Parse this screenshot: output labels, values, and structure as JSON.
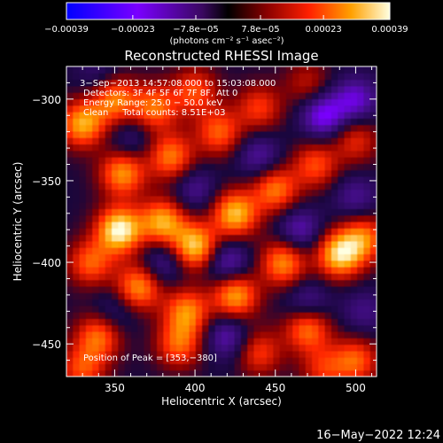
{
  "chart_data": {
    "type": "heatmap",
    "title": "Reconstructed RHESSI Image",
    "xlabel": "Heliocentric X (arcsec)",
    "ylabel": "Heliocentric Y (arcsec)",
    "xlim": [
      320,
      513
    ],
    "ylim": [
      -470,
      -280
    ],
    "x_ticks": [
      350,
      400,
      450,
      500
    ],
    "x_tick_labels": [
      "350",
      "400",
      "450",
      "500"
    ],
    "y_ticks": [
      -300,
      -350,
      -400,
      -450
    ],
    "y_tick_labels": [
      "−300",
      "−350",
      "−400",
      "−450"
    ],
    "colorbar": {
      "range": [
        -0.00039,
        0.00039
      ],
      "tick_labels": [
        "−0.00039",
        "−0.00023",
        "−7.8e−05",
        "7.8e−05",
        "0.00023",
        "0.00039"
      ],
      "unit_label": "(photons cm⁻² s⁻¹ asec⁻²)",
      "colors": [
        "#0000ff",
        "#7a00ff",
        "#5a1080",
        "#000000",
        "#8a0000",
        "#ff2000",
        "#ffa000",
        "#ffffe0"
      ]
    },
    "annotations": [
      "3−Sep−2013 14:57:08.000 to 15:03:08.000",
      "Detectors: 3F 4F 5F 6F 7F 8F, Att 0",
      "Energy Range: 25.0 − 50.0 keV",
      "Clean     Total counts: 8.51E+03"
    ],
    "peak": {
      "label": "Position of Peak = [353,−380]",
      "x": 353,
      "y": -380
    },
    "bands": [
      {
        "x": 330,
        "y": -315,
        "value": 0.0003
      },
      {
        "x": 350,
        "y": -300,
        "value": 0.00026
      },
      {
        "x": 375,
        "y": -305,
        "value": 0.00024
      },
      {
        "x": 400,
        "y": -295,
        "value": 0.0002
      },
      {
        "x": 355,
        "y": -345,
        "value": 0.00028
      },
      {
        "x": 385,
        "y": -335,
        "value": 0.00025
      },
      {
        "x": 415,
        "y": -320,
        "value": 0.00022
      },
      {
        "x": 440,
        "y": -305,
        "value": 0.00018
      },
      {
        "x": 470,
        "y": -290,
        "value": 0.00012
      },
      {
        "x": 353,
        "y": -380,
        "value": 0.00039
      },
      {
        "x": 380,
        "y": -375,
        "value": 0.0003
      },
      {
        "x": 400,
        "y": -390,
        "value": 0.00034
      },
      {
        "x": 425,
        "y": -370,
        "value": 0.00032
      },
      {
        "x": 450,
        "y": -355,
        "value": 0.00025
      },
      {
        "x": 475,
        "y": -340,
        "value": 0.0002
      },
      {
        "x": 500,
        "y": -325,
        "value": 0.00016
      },
      {
        "x": 335,
        "y": -400,
        "value": 0.00022
      },
      {
        "x": 365,
        "y": -415,
        "value": 0.00028
      },
      {
        "x": 395,
        "y": -430,
        "value": 0.00026
      },
      {
        "x": 425,
        "y": -420,
        "value": 0.0003
      },
      {
        "x": 455,
        "y": -400,
        "value": 0.00027
      },
      {
        "x": 490,
        "y": -395,
        "value": 0.00034
      },
      {
        "x": 505,
        "y": -385,
        "value": 0.00024
      },
      {
        "x": 340,
        "y": -445,
        "value": 0.00024
      },
      {
        "x": 330,
        "y": -465,
        "value": 0.0002
      },
      {
        "x": 390,
        "y": -450,
        "value": 0.00022
      },
      {
        "x": 440,
        "y": -455,
        "value": 0.00018
      },
      {
        "x": 470,
        "y": -440,
        "value": 0.00026
      },
      {
        "x": 500,
        "y": -460,
        "value": 0.00022
      },
      {
        "x": 480,
        "y": -465,
        "value": 0.00016
      },
      {
        "x": 360,
        "y": -325,
        "value": -0.0001
      },
      {
        "x": 400,
        "y": -355,
        "value": -0.00012
      },
      {
        "x": 440,
        "y": -335,
        "value": -0.00014
      },
      {
        "x": 480,
        "y": -310,
        "value": -0.00022
      },
      {
        "x": 500,
        "y": -300,
        "value": -0.00018
      },
      {
        "x": 380,
        "y": -400,
        "value": -0.00014
      },
      {
        "x": 420,
        "y": -400,
        "value": -0.00018
      },
      {
        "x": 465,
        "y": -380,
        "value": -0.00016
      },
      {
        "x": 500,
        "y": -360,
        "value": -0.00012
      },
      {
        "x": 350,
        "y": -430,
        "value": -0.0001
      },
      {
        "x": 420,
        "y": -445,
        "value": -0.00016
      },
      {
        "x": 470,
        "y": -425,
        "value": -0.00014
      },
      {
        "x": 505,
        "y": -430,
        "value": -0.0001
      },
      {
        "x": 340,
        "y": -285,
        "value": -8e-05
      }
    ]
  },
  "footer": {
    "timestamp": "16−May−2022 12:24"
  }
}
